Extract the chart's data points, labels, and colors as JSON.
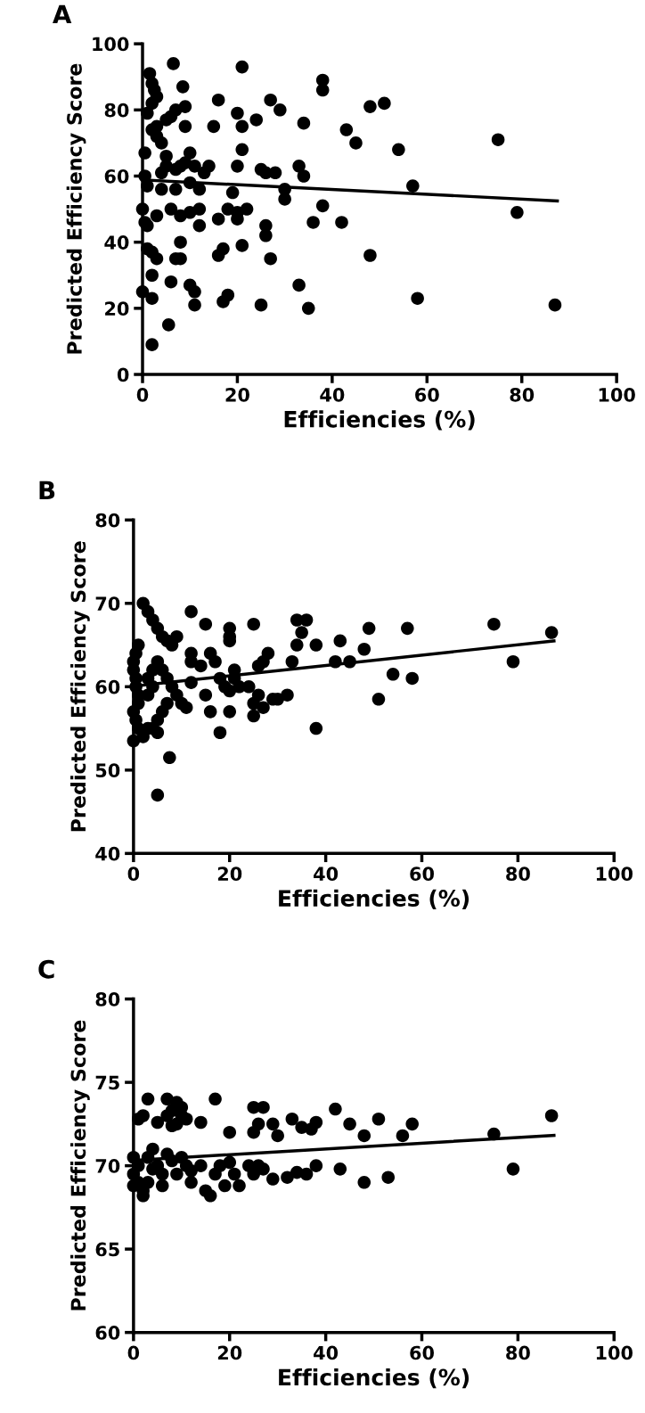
{
  "chart_data": [
    {
      "type": "scatter",
      "title": "A",
      "xlabel": "Efficiencies (%)",
      "ylabel": "Predicted Efficiency Score",
      "xlim": [
        0,
        100
      ],
      "ylim": [
        0,
        100
      ],
      "xticks": [
        0,
        20,
        40,
        60,
        80,
        100
      ],
      "yticks": [
        0,
        20,
        40,
        60,
        80,
        100
      ],
      "marker": "circle",
      "grid": false,
      "series": [
        {
          "color": "#000000",
          "x": [
            1.5,
            2,
            3,
            2.5,
            6.5,
            2,
            1,
            3,
            5,
            6,
            7,
            8.5,
            9,
            0.5,
            0.5,
            1,
            0,
            0.5,
            1,
            1,
            0,
            2,
            2,
            2,
            2,
            3,
            3,
            4,
            4,
            5,
            5,
            4,
            3,
            2,
            5.5,
            6,
            7,
            8,
            8,
            8,
            6,
            7,
            7,
            8,
            9,
            9,
            10,
            11,
            10,
            10,
            10,
            11,
            11,
            12,
            12,
            12,
            13,
            14,
            15,
            16,
            16,
            16,
            17,
            17,
            18,
            18,
            19,
            20,
            20,
            20,
            20,
            21,
            21,
            21,
            21,
            22,
            24,
            25,
            25,
            26,
            26,
            26,
            27,
            27,
            28,
            29,
            30,
            30,
            33,
            33,
            34,
            34,
            35,
            36,
            38,
            38,
            38,
            42,
            43,
            45,
            48,
            48,
            51,
            54,
            57,
            58,
            75,
            79,
            87
          ],
          "values": [
            91,
            88,
            84,
            86,
            94,
            82,
            79,
            75,
            77,
            78,
            80,
            87,
            81,
            67,
            60,
            57,
            50,
            46,
            45,
            38,
            25,
            9,
            23,
            30,
            37,
            35,
            48,
            56,
            61,
            63,
            66,
            70,
            72,
            74,
            15,
            28,
            35,
            35,
            40,
            48,
            50,
            56,
            62,
            63,
            64,
            75,
            67,
            63,
            58,
            49,
            27,
            25,
            21,
            50,
            56,
            45,
            61,
            63,
            75,
            83,
            47,
            36,
            38,
            22,
            24,
            50,
            55,
            49,
            47,
            63,
            79,
            93,
            75,
            68,
            39,
            50,
            77,
            62,
            21,
            61,
            42,
            45,
            83,
            35,
            61,
            80,
            56,
            53,
            27,
            63,
            60,
            76,
            20,
            46,
            51,
            86,
            89,
            46,
            74,
            70,
            36,
            81,
            82,
            68,
            57,
            23,
            71,
            49,
            21
          ]
        },
        {
          "type": "line",
          "marker": "none",
          "color": "#000000",
          "x": [
            0.5,
            87.5
          ],
          "values": [
            58.8,
            52.5
          ]
        }
      ]
    },
    {
      "type": "scatter",
      "title": "B",
      "xlabel": "Efficiencies (%)",
      "ylabel": "Predicted Efficiency Score",
      "xlim": [
        0,
        100
      ],
      "ylim": [
        40,
        80
      ],
      "xticks": [
        0,
        20,
        40,
        60,
        80,
        100
      ],
      "yticks": [
        40,
        50,
        60,
        70,
        80
      ],
      "marker": "circle",
      "grid": false,
      "series": [
        {
          "color": "#000000",
          "x": [
            2,
            3,
            4,
            5,
            6,
            7,
            8,
            9,
            1,
            0.5,
            0,
            0,
            0.5,
            0.5,
            1,
            1,
            0,
            0.5,
            1,
            0,
            2,
            3,
            4,
            5,
            5,
            6,
            7,
            7.5,
            5,
            3,
            4,
            3,
            4,
            5,
            6,
            7,
            8,
            9,
            10,
            11,
            12,
            12,
            12,
            12,
            14,
            15,
            15,
            16,
            17,
            16,
            18,
            18,
            19,
            20,
            20,
            20,
            20,
            20,
            21,
            21,
            22,
            24,
            25,
            25,
            25,
            26,
            26,
            27,
            27,
            28,
            29,
            30,
            32,
            33,
            34,
            34,
            35,
            36,
            38,
            38,
            42,
            43,
            45,
            48,
            49,
            51,
            54,
            57,
            58,
            75,
            79,
            87
          ],
          "values": [
            70,
            69,
            68,
            67,
            66,
            65.5,
            65,
            66,
            65,
            64,
            63,
            62,
            61,
            60,
            59,
            58,
            57,
            56,
            55,
            53.5,
            54,
            55,
            55,
            54.5,
            56,
            57,
            58,
            51.5,
            47,
            59,
            60,
            61,
            62,
            63,
            62,
            61,
            60,
            59,
            58,
            57.5,
            60.5,
            63,
            64,
            69,
            62.5,
            67.5,
            59,
            64,
            63,
            57,
            54.5,
            61,
            60,
            59.5,
            57,
            65.5,
            67,
            66,
            61,
            62,
            60,
            60,
            56.5,
            58,
            67.5,
            59,
            62.5,
            63,
            57.5,
            64,
            58.5,
            58.5,
            59,
            63,
            68,
            65,
            66.5,
            68,
            65,
            55,
            63,
            65.5,
            63,
            64.5,
            67,
            58.5,
            61.5,
            67,
            61,
            67.5,
            63,
            66.5
          ]
        },
        {
          "type": "line",
          "marker": "none",
          "color": "#000000",
          "x": [
            0.5,
            87.5
          ],
          "values": [
            60.1,
            65.5
          ]
        }
      ]
    },
    {
      "type": "scatter",
      "title": "C",
      "xlabel": "Efficiencies (%)",
      "ylabel": "Predicted Efficiency Score",
      "xlim": [
        0,
        100
      ],
      "ylim": [
        60,
        80
      ],
      "xticks": [
        0,
        20,
        40,
        60,
        80,
        100
      ],
      "yticks": [
        60,
        65,
        70,
        75,
        80
      ],
      "marker": "circle",
      "grid": false,
      "series": [
        {
          "color": "#000000",
          "x": [
            1,
            2,
            3,
            5,
            7,
            7,
            8,
            8,
            9,
            9,
            10,
            10,
            11,
            14,
            17,
            20,
            25,
            26,
            27,
            25,
            29,
            30,
            33,
            35,
            37,
            38,
            42,
            45,
            48,
            51,
            56,
            58,
            75,
            87,
            0,
            0,
            0,
            1,
            1,
            2,
            2,
            3,
            3,
            4,
            4,
            5,
            6,
            6,
            7,
            8,
            9,
            10,
            11,
            12,
            12,
            14,
            15,
            16,
            17,
            18,
            19,
            20,
            21,
            22,
            24,
            25,
            26,
            27,
            29,
            32,
            34,
            36,
            38,
            43,
            48,
            53,
            79
          ],
          "values": [
            72.8,
            73,
            74,
            72.6,
            74,
            73,
            72.4,
            73.3,
            73.8,
            72.5,
            73,
            73.5,
            72.8,
            72.6,
            74,
            72,
            73.5,
            72.5,
            73.5,
            72,
            72.5,
            71.8,
            72.8,
            72.3,
            72.2,
            72.6,
            73.4,
            72.5,
            71.8,
            72.8,
            71.8,
            72.5,
            71.9,
            73,
            70.5,
            69.5,
            68.8,
            70,
            69,
            68.5,
            68.2,
            69,
            70.5,
            69.8,
            71,
            70,
            69.5,
            68.8,
            70.7,
            70.3,
            69.5,
            70.5,
            70,
            69,
            69.7,
            70,
            68.5,
            68.2,
            69.5,
            70,
            68.8,
            70.2,
            69.5,
            68.8,
            70,
            69.5,
            70,
            69.8,
            69.2,
            69.3,
            69.6,
            69.5,
            70,
            69.8,
            69,
            69.3,
            69.8
          ]
        },
        {
          "type": "line",
          "marker": "none",
          "color": "#000000",
          "x": [
            0.5,
            87.5
          ],
          "values": [
            70.33,
            71.82
          ]
        }
      ]
    }
  ]
}
